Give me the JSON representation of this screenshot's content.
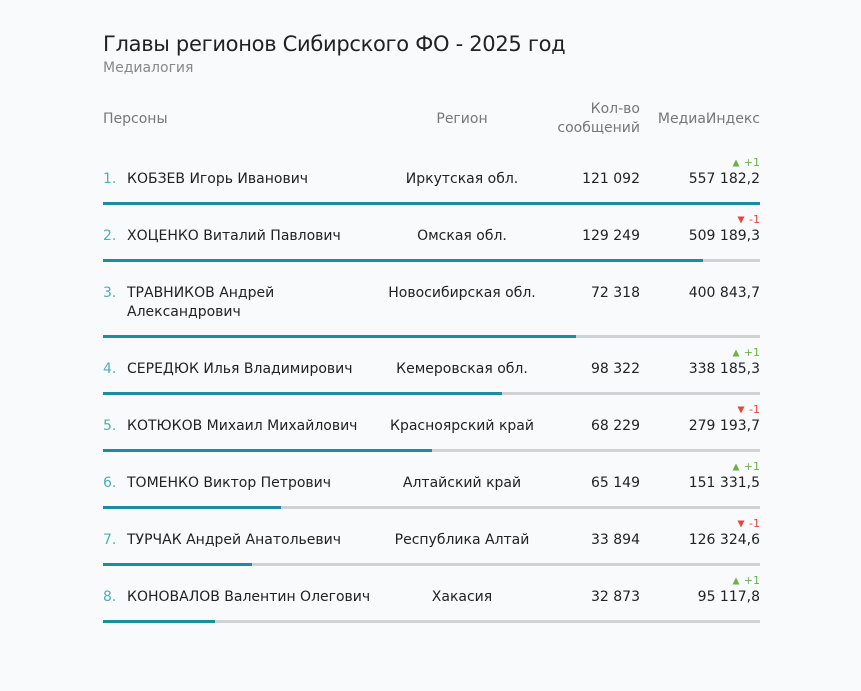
{
  "header": {
    "title": "Главы регионов Сибирского ФО - 2025 год",
    "subtitle": "Медиалогия"
  },
  "table": {
    "columns": [
      "Персоны",
      "Регион",
      "Кол-во сообщений",
      "МедиаИндекс"
    ],
    "rows": [
      {
        "rank": "1.",
        "name": "КОБЗЕВ Игорь Иванович",
        "region": "Иркутская обл.",
        "messages": "121 092",
        "index": {
          "value": 557182.2,
          "label": "557 182,2"
        },
        "change": "+1"
      },
      {
        "rank": "2.",
        "name": "ХОЦЕНКО Виталий Павлович",
        "region": "Омская обл.",
        "messages": "129 249",
        "index": {
          "value": 509189.3,
          "label": "509 189,3"
        },
        "change": "-1"
      },
      {
        "rank": "3.",
        "name": "ТРАВНИКОВ Андрей Александрович",
        "region": "Новосибирская обл.",
        "messages": "72 318",
        "index": {
          "value": 400843.7,
          "label": "400 843,7"
        }
      },
      {
        "rank": "4.",
        "name": "СЕРЕДЮК Илья Владимирович",
        "region": "Кемеровская обл.",
        "messages": "98 322",
        "index": {
          "value": 338185.3,
          "label": "338 185,3"
        },
        "change": "+1"
      },
      {
        "rank": "5.",
        "name": "КОТЮКОВ Михаил Михайлович",
        "region": "Красноярский край",
        "messages": "68 229",
        "index": {
          "value": 279193.7,
          "label": "279 193,7"
        },
        "change": "-1"
      },
      {
        "rank": "6.",
        "name": "ТОМЕНКО Виктор Петрович",
        "region": "Алтайский край",
        "messages": "65 149",
        "index": {
          "value": 151331.5,
          "label": "151 331,5"
        },
        "change": "+1"
      },
      {
        "rank": "7.",
        "name": "ТУРЧАК Андрей Анатольевич",
        "region": "Республика Алтай",
        "messages": "33 894",
        "index": {
          "value": 126324.6,
          "label": "126 324,6"
        },
        "change": "-1"
      },
      {
        "rank": "8.",
        "name": "КОНОВАЛОВ Валентин Олегович",
        "region": "Хакасия",
        "messages": "32 873",
        "index": {
          "value": 95117.8,
          "label": "95 117,8"
        },
        "change": "+1"
      }
    ]
  }
}
